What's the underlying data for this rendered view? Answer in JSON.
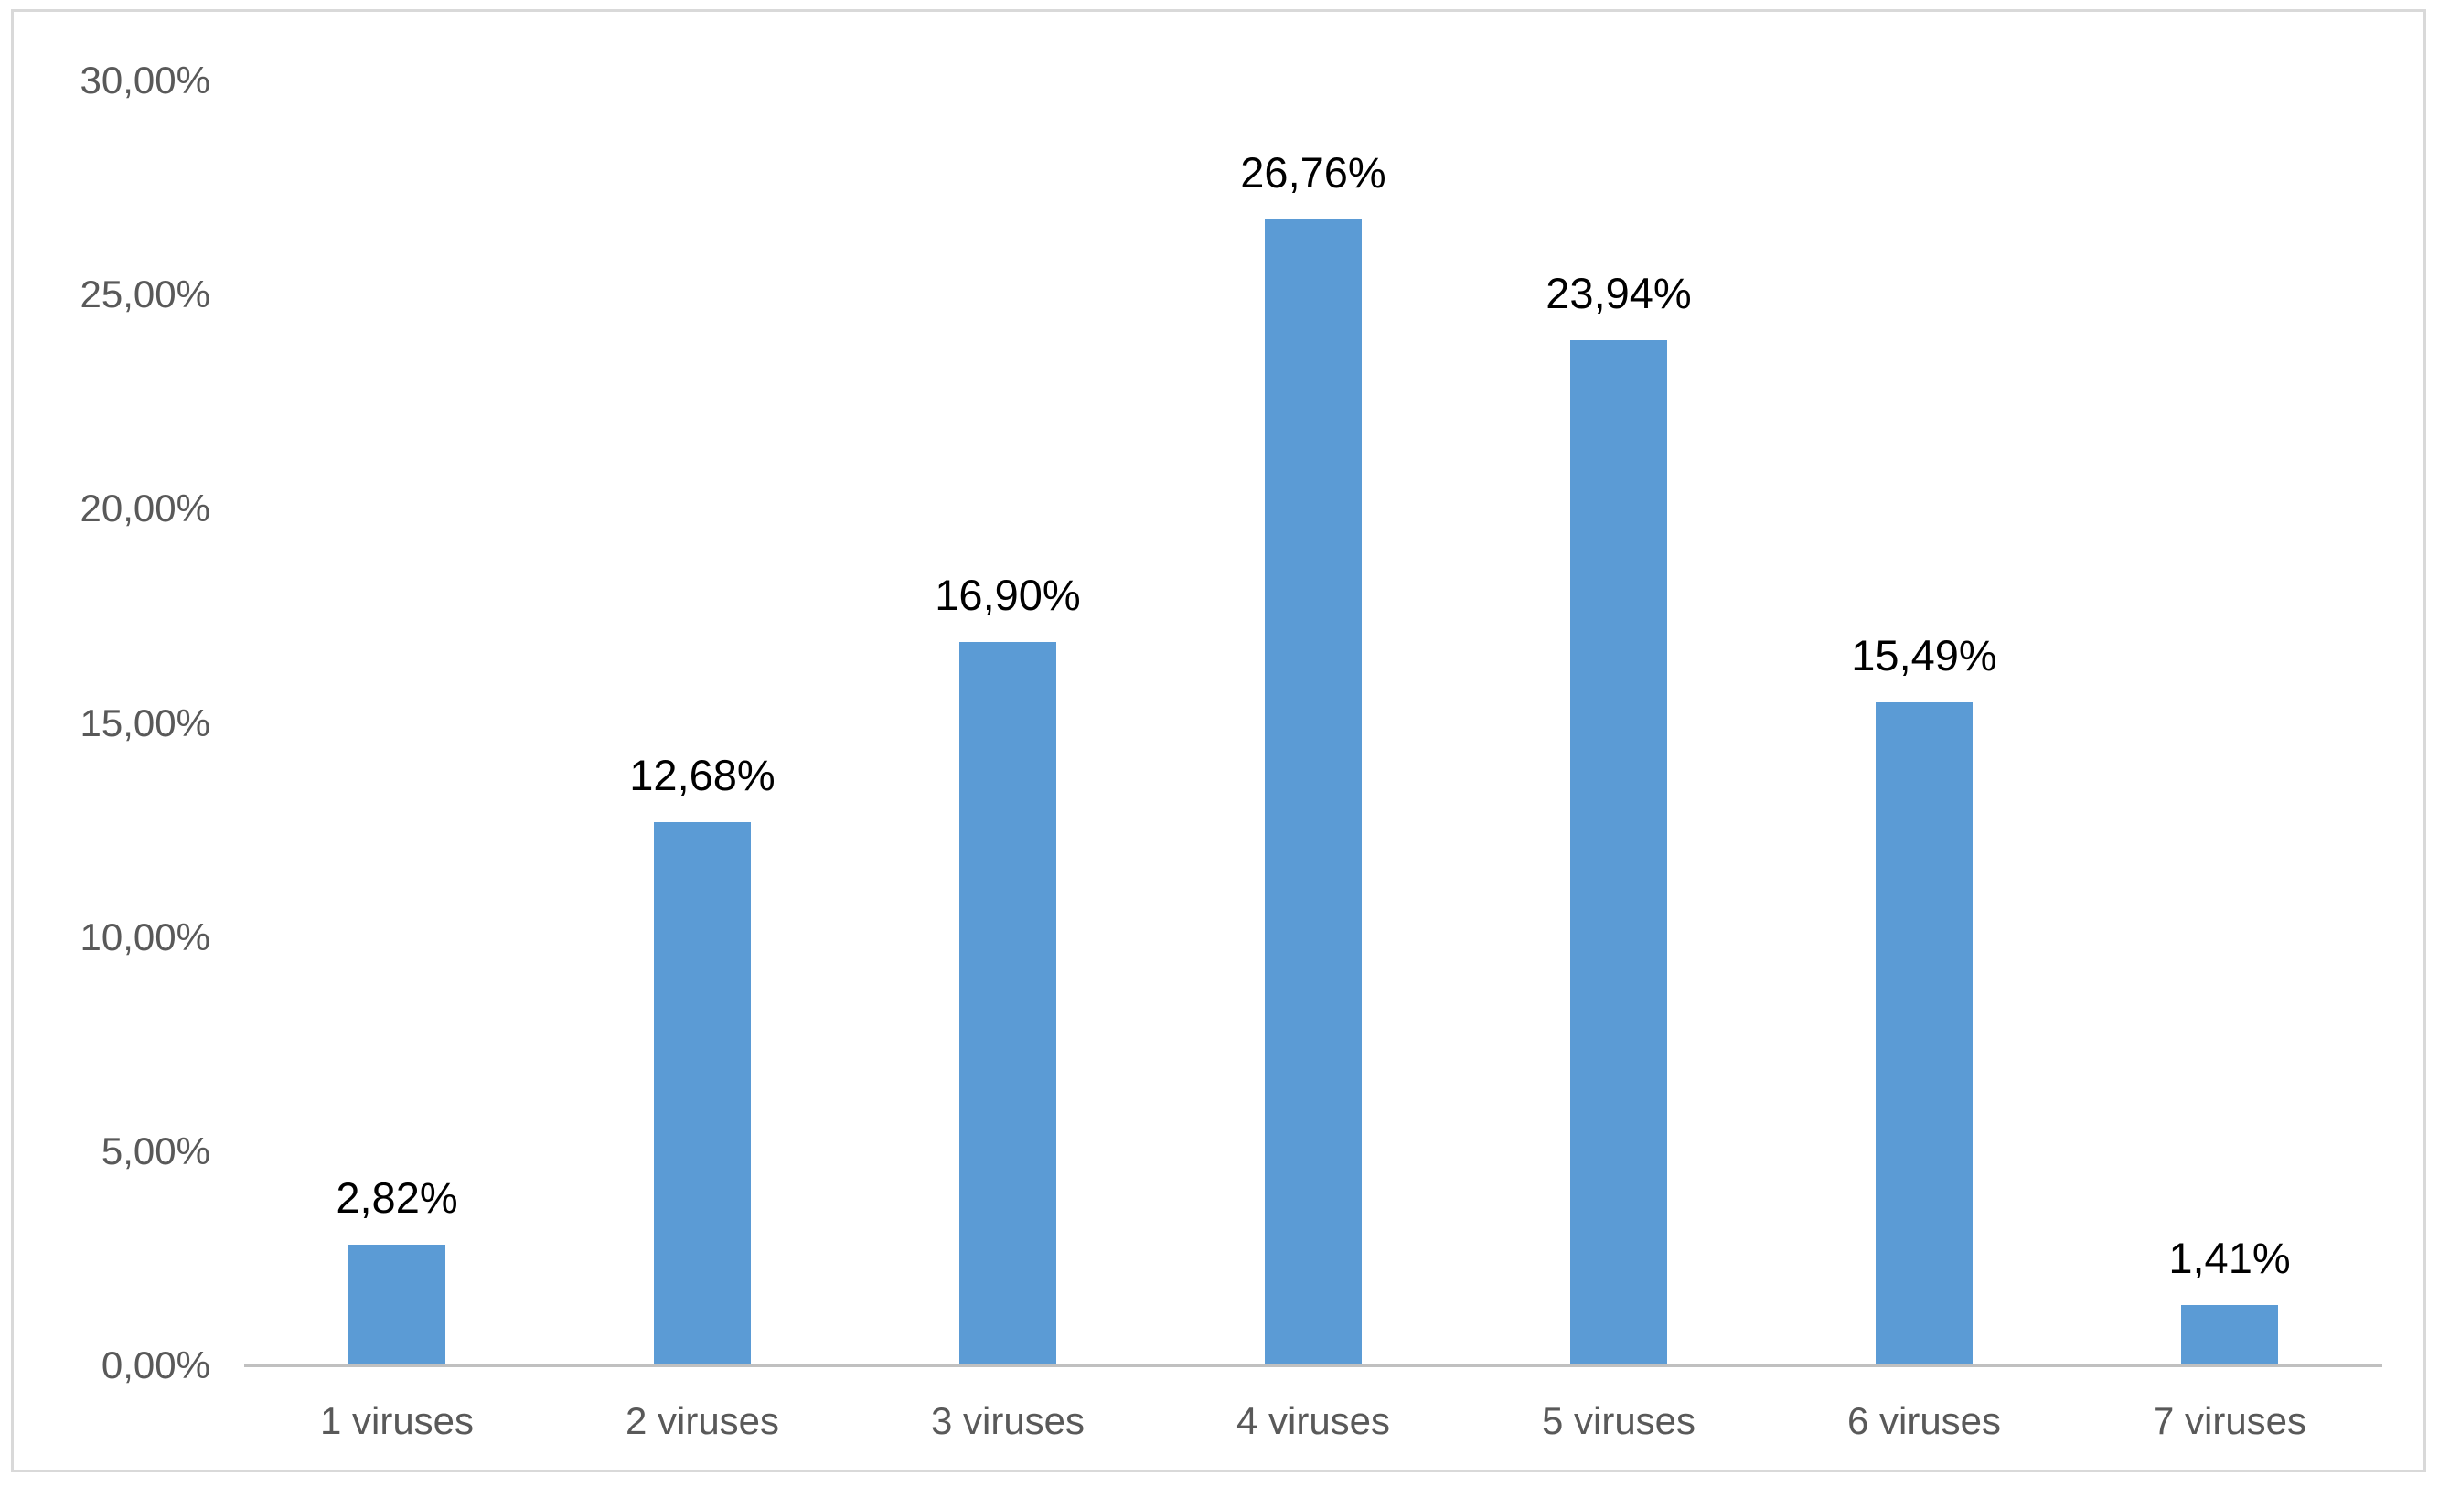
{
  "chart_data": {
    "type": "bar",
    "categories": [
      "1 viruses",
      "2 viruses",
      "3 viruses",
      "4 viruses",
      "5 viruses",
      "6 viruses",
      "7 viruses"
    ],
    "values": [
      2.82,
      12.68,
      16.9,
      26.76,
      23.94,
      15.49,
      1.41
    ],
    "data_labels": [
      "2,82%",
      "12,68%",
      "16,90%",
      "26,76%",
      "23,94%",
      "15,49%",
      "1,41%"
    ],
    "y_ticks": [
      "30,00%",
      "25,00%",
      "20,00%",
      "15,00%",
      "10,00%",
      "5,00%",
      "0,00%"
    ],
    "y_tick_values": [
      30,
      25,
      20,
      15,
      10,
      5,
      0
    ],
    "title": "",
    "xlabel": "",
    "ylabel": "",
    "ylim": [
      0,
      30
    ],
    "grid": false,
    "legend": false,
    "colors": {
      "bar": "#5B9BD5",
      "axis_text": "#595959",
      "data_label_text": "#000000",
      "axis_line": "#C0C0C0",
      "frame_border": "#D9D9D9",
      "background": "#FFFFFF"
    }
  }
}
